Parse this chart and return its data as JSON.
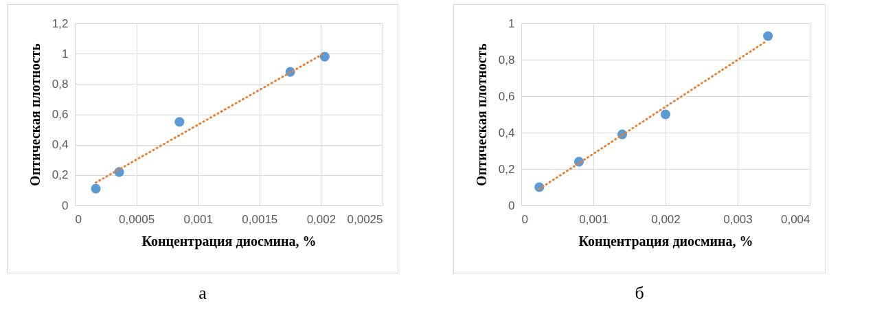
{
  "chart_data": [
    {
      "type": "scatter",
      "xlabel": "Концентрация диосмина, %",
      "ylabel": "Оптическая плотность",
      "annotations": [
        "а"
      ],
      "grid": true,
      "marker": "circle",
      "xlim": [
        0,
        0.0025
      ],
      "xticks": [
        {
          "value": 0,
          "label": "0"
        },
        {
          "value": 0.0005,
          "label": "0,0005"
        },
        {
          "value": 0.001,
          "label": "0,001"
        },
        {
          "value": 0.0015,
          "label": "0,0015"
        },
        {
          "value": 0.002,
          "label": "0,002"
        },
        {
          "value": 0.0025,
          "label": "0,0025"
        }
      ],
      "ylim": [
        0,
        1.2
      ],
      "yticks": [
        {
          "value": 0,
          "label": "0"
        },
        {
          "value": 0.2,
          "label": "0,2"
        },
        {
          "value": 0.4,
          "label": "0,4"
        },
        {
          "value": 0.6,
          "label": "0,6"
        },
        {
          "value": 0.8,
          "label": "0,8"
        },
        {
          "value": 1,
          "label": "1"
        },
        {
          "value": 1.2,
          "label": "1,2"
        }
      ],
      "series": [
        {
          "color": "#5b9bd5",
          "x": [
            0.00017,
            0.00036,
            0.00085,
            0.00175,
            0.00203
          ],
          "values": [
            0.11,
            0.22,
            0.55,
            0.88,
            0.98
          ]
        },
        {
          "type": "line",
          "line_style": "dotted",
          "marker": "none",
          "color": "#ed7d31",
          "x": [
            0.00017,
            0.00202
          ],
          "values": [
            0.15,
            1.0
          ]
        }
      ]
    },
    {
      "type": "scatter",
      "xlabel": "Концентрация диосмина, %",
      "ylabel": "Оптическая плотность",
      "annotations": [
        "б"
      ],
      "grid": true,
      "marker": "circle",
      "xlim": [
        0,
        0.004
      ],
      "xticks": [
        {
          "value": 0,
          "label": "0"
        },
        {
          "value": 0.001,
          "label": "0,001"
        },
        {
          "value": 0.002,
          "label": "0,002"
        },
        {
          "value": 0.003,
          "label": "0,003"
        },
        {
          "value": 0.004,
          "label": "0,004"
        }
      ],
      "ylim": [
        0,
        1
      ],
      "yticks": [
        {
          "value": 0,
          "label": "0"
        },
        {
          "value": 0.2,
          "label": "0,2"
        },
        {
          "value": 0.4,
          "label": "0,4"
        },
        {
          "value": 0.6,
          "label": "0,6"
        },
        {
          "value": 0.8,
          "label": "0,8"
        },
        {
          "value": 1,
          "label": "1"
        }
      ],
      "series": [
        {
          "color": "#5b9bd5",
          "x": [
            0.00025,
            0.0008,
            0.0014,
            0.002,
            0.00342
          ],
          "values": [
            0.1,
            0.24,
            0.39,
            0.5,
            0.93
          ]
        },
        {
          "type": "line",
          "line_style": "dotted",
          "marker": "none",
          "color": "#ed7d31",
          "x": [
            0.00025,
            0.00339
          ],
          "values": [
            0.09,
            0.9
          ]
        }
      ]
    }
  ]
}
